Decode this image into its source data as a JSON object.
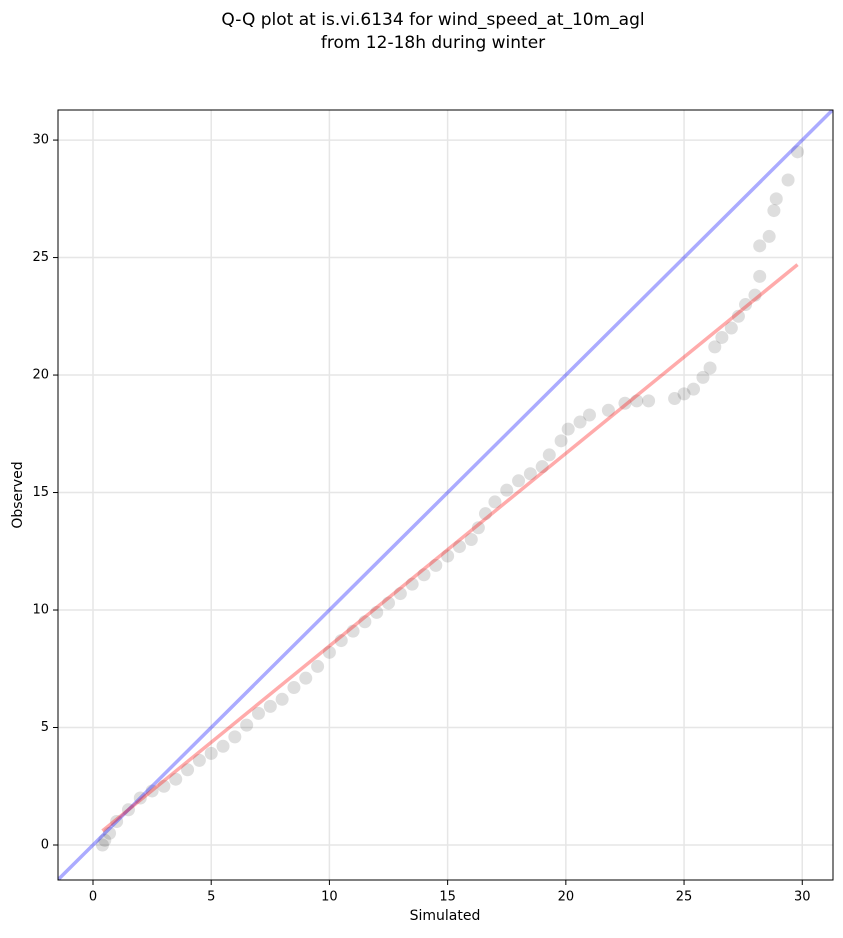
{
  "chart_data": {
    "type": "scatter",
    "title": [
      "Q-Q plot at is.vi.6134 for wind_speed_at_10m_agl",
      "from 12-18h during winter"
    ],
    "x_label": "Simulated",
    "y_label": "Observed",
    "xlim": [
      -1.48,
      31.3
    ],
    "ylim": [
      -1.49,
      31.28
    ],
    "xticks": [
      0,
      5,
      10,
      15,
      20,
      25,
      30
    ],
    "yticks": [
      0,
      5,
      10,
      15,
      20,
      25,
      30
    ],
    "grid": true,
    "series": [
      {
        "color": "#222222",
        "x": [
          0.4,
          0.5,
          0.7,
          1.0,
          1.5,
          2.0,
          2.5,
          3.0,
          3.5,
          4.0,
          4.5,
          5.0,
          5.5,
          6.0,
          6.5,
          7.0,
          7.5,
          8.0,
          8.5,
          9.0,
          9.5,
          10.0,
          10.5,
          11.0,
          11.5,
          12.0,
          12.5,
          13.0,
          13.5,
          14.0,
          14.5,
          15.0,
          15.5,
          16.0,
          16.3,
          16.6,
          17.0,
          17.5,
          18.0,
          18.5,
          19.0,
          19.3,
          19.8,
          20.1,
          20.6,
          21.0,
          21.8,
          22.5,
          23.0,
          23.5,
          24.6,
          25.0,
          25.4,
          25.8,
          26.1,
          26.3,
          26.6,
          27.0,
          27.3,
          27.6,
          28.0,
          28.2,
          28.2,
          28.6,
          28.8,
          28.9,
          29.4,
          29.8
        ],
        "values": [
          0.0,
          0.2,
          0.5,
          1.0,
          1.5,
          2.0,
          2.3,
          2.5,
          2.8,
          3.2,
          3.6,
          3.9,
          4.2,
          4.6,
          5.1,
          5.6,
          5.9,
          6.2,
          6.7,
          7.1,
          7.6,
          8.2,
          8.7,
          9.1,
          9.5,
          9.9,
          10.3,
          10.7,
          11.1,
          11.5,
          11.9,
          12.3,
          12.7,
          13.0,
          13.5,
          14.1,
          14.6,
          15.1,
          15.5,
          15.8,
          16.1,
          16.6,
          17.2,
          17.7,
          18.0,
          18.3,
          18.5,
          18.8,
          18.9,
          18.9,
          19.0,
          19.2,
          19.4,
          19.9,
          20.3,
          21.2,
          21.6,
          22.0,
          22.5,
          23.0,
          23.4,
          24.2,
          25.5,
          25.9,
          27.0,
          27.5,
          28.3,
          29.5
        ]
      }
    ],
    "lines": [
      {
        "color": "#0000ff",
        "x": [
          -1.48,
          31.3
        ],
        "values": [
          -1.48,
          31.3
        ]
      },
      {
        "color": "#ff0000",
        "x": [
          0.4,
          29.8
        ],
        "values": [
          0.6,
          24.7
        ]
      }
    ]
  }
}
